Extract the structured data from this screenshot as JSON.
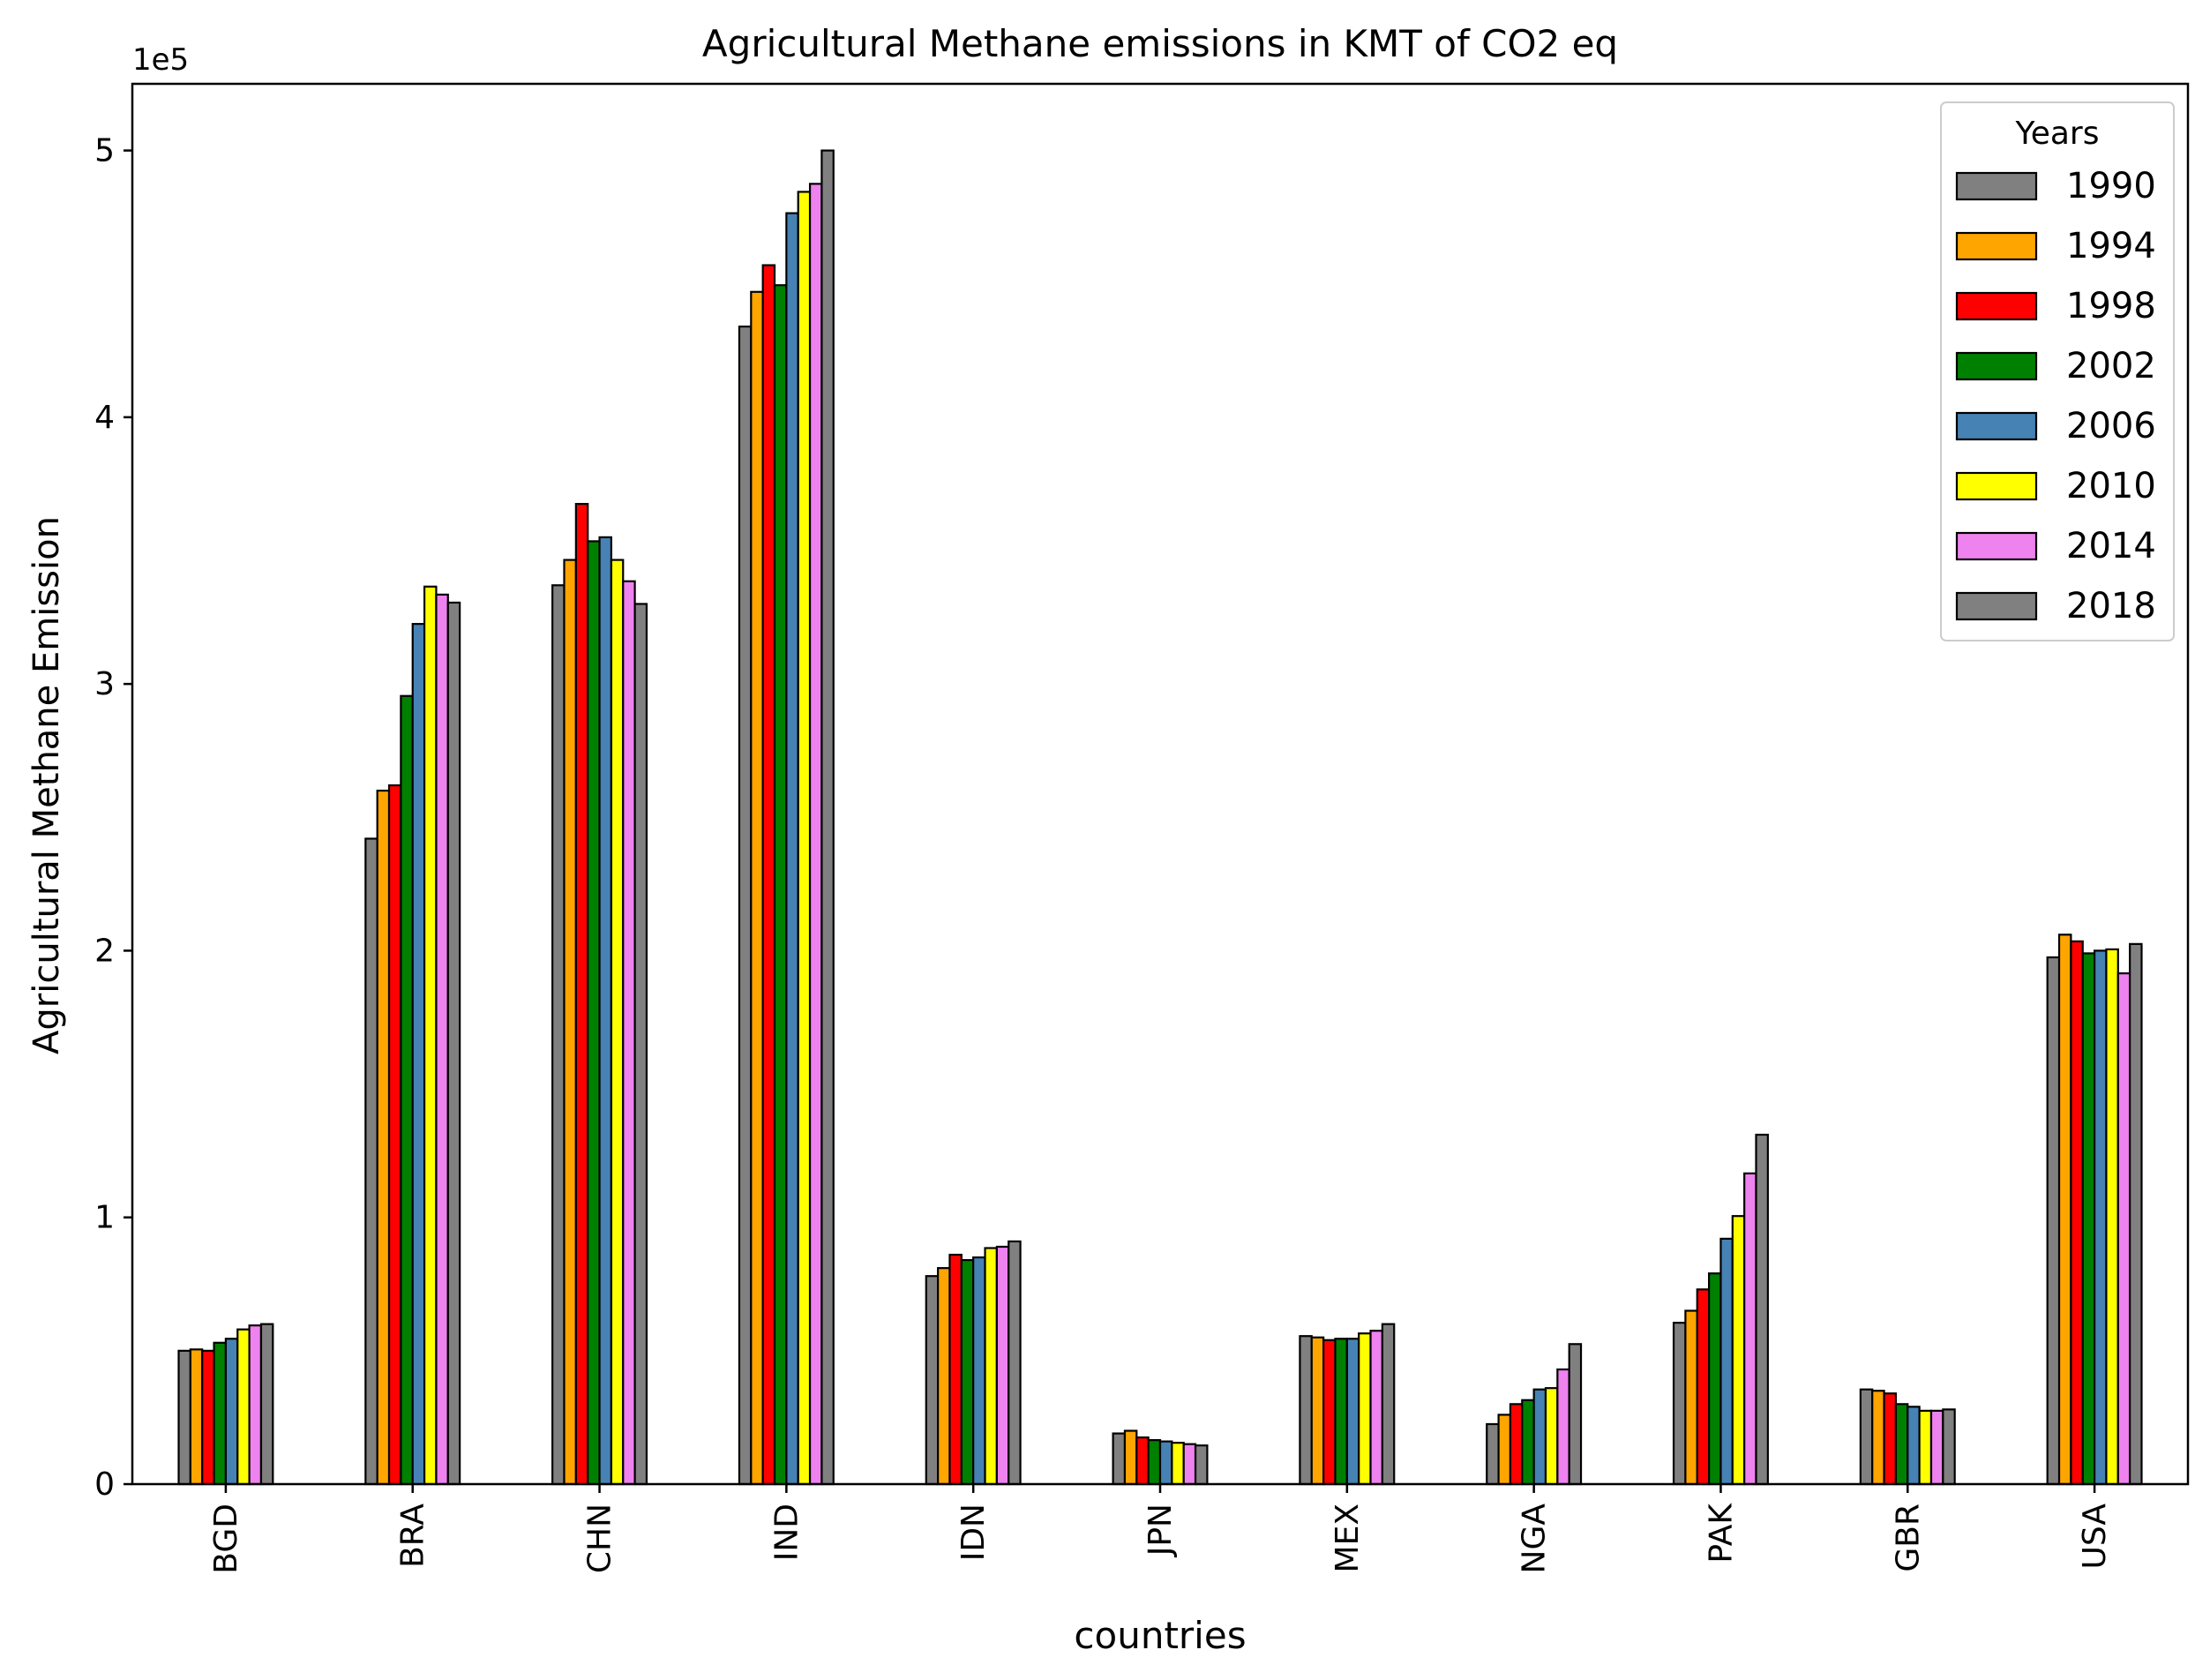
{
  "chart_data": {
    "type": "bar",
    "title": "Agricultural Methane emissions in KMT of CO2 eq",
    "xlabel": "countries",
    "ylabel": "Agricultural Methane Emission",
    "y_offset_label": "1e5",
    "ylim": [
      0,
      525000
    ],
    "y_ticks": [
      0,
      100000,
      200000,
      300000,
      400000,
      500000
    ],
    "y_tick_labels": [
      "0",
      "1",
      "2",
      "3",
      "4",
      "5"
    ],
    "grid": false,
    "legend": {
      "title": "Years",
      "placement": "top-right"
    },
    "categories": [
      "BGD",
      "BRA",
      "CHN",
      "IND",
      "IDN",
      "JPN",
      "MEX",
      "NGA",
      "PAK",
      "GBR",
      "USA"
    ],
    "series": [
      {
        "name": "1990",
        "color": "#808080",
        "values": [
          50000,
          242000,
          337000,
          434000,
          78000,
          19000,
          55500,
          22500,
          60500,
          35500,
          197500
        ]
      },
      {
        "name": "1994",
        "color": "#FFA500",
        "values": [
          50500,
          260000,
          346500,
          447000,
          81000,
          20000,
          55000,
          26000,
          65000,
          35000,
          206000
        ]
      },
      {
        "name": "1998",
        "color": "#FF0000",
        "values": [
          50000,
          262000,
          367500,
          457000,
          86000,
          17500,
          54000,
          30000,
          73000,
          34000,
          203500
        ]
      },
      {
        "name": "2002",
        "color": "#008000",
        "values": [
          53000,
          295500,
          353500,
          449500,
          84000,
          16500,
          54500,
          31500,
          79000,
          30000,
          199000
        ]
      },
      {
        "name": "2006",
        "color": "#4682B4",
        "values": [
          54500,
          322500,
          355000,
          476500,
          85000,
          16000,
          54500,
          35500,
          92000,
          29000,
          200000
        ]
      },
      {
        "name": "2010",
        "color": "#FFFF00",
        "values": [
          58000,
          336500,
          346500,
          484500,
          88500,
          15500,
          56500,
          36000,
          100500,
          27500,
          200500
        ]
      },
      {
        "name": "2014",
        "color": "#EE82EE",
        "values": [
          59500,
          333500,
          338500,
          487500,
          89000,
          15000,
          57500,
          43000,
          116500,
          27500,
          191500
        ]
      },
      {
        "name": "2018",
        "color": "#808080",
        "values": [
          60000,
          330500,
          330000,
          500000,
          91000,
          14500,
          60000,
          52500,
          131000,
          28000,
          202500
        ]
      }
    ]
  }
}
